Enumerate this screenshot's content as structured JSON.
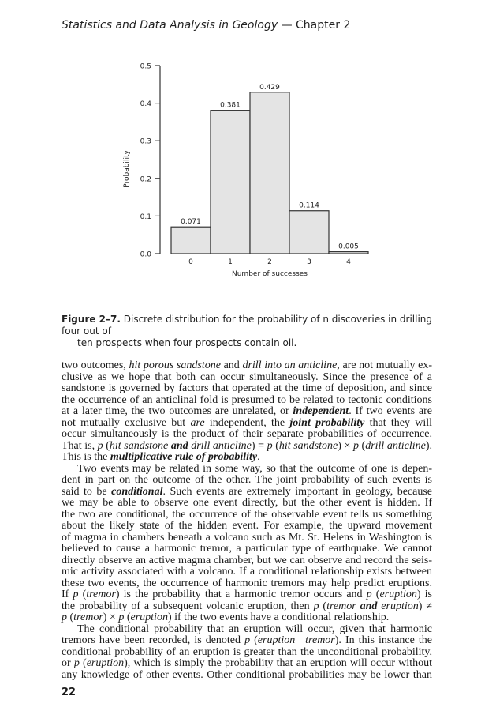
{
  "header": {
    "title": "Statistics and Data Analysis in Geology",
    "separator": " — ",
    "chapter": "Chapter 2"
  },
  "chart_data": {
    "type": "bar",
    "categories": [
      "0",
      "1",
      "2",
      "3",
      "4"
    ],
    "values": [
      0.071,
      0.381,
      0.429,
      0.114,
      0.005
    ],
    "data_labels": [
      "0.071",
      "0.381",
      "0.429",
      "0.114",
      "0.005"
    ],
    "xlabel": "Number of successes",
    "ylabel": "Probability",
    "ylim": [
      0,
      0.5
    ],
    "yticks": [
      "0.0",
      "0.1",
      "0.2",
      "0.3",
      "0.4",
      "0.5"
    ],
    "grid": false,
    "bar_fill": "#e4e4e4",
    "bar_stroke": "#333333"
  },
  "caption": {
    "label": "Figure 2–7.",
    "line1": " Discrete distribution for the probability of n discoveries in drilling four out of",
    "line2": "ten prospects when four prospects contain oil."
  },
  "body": {
    "lines": [
      {
        "segs": [
          {
            "t": "two outcomes, "
          },
          {
            "t": "hit porous sandstone",
            "s": "i"
          },
          {
            "t": " and "
          },
          {
            "t": "drill into an anticline",
            "s": "i"
          },
          {
            "t": ", are not mutually ex-"
          }
        ]
      },
      {
        "segs": [
          {
            "t": "clusive as we hope that both can occur simultaneously.  Since the presence of a"
          }
        ]
      },
      {
        "segs": [
          {
            "t": "sandstone is governed by factors that operated at the time of deposition, and since"
          }
        ]
      },
      {
        "segs": [
          {
            "t": "the occurrence of an anticlinal fold is presumed to be related to tectonic conditions"
          }
        ]
      },
      {
        "segs": [
          {
            "t": "at a later time, the two outcomes are unrelated, or "
          },
          {
            "t": "independent",
            "s": "bi"
          },
          {
            "t": ". If two events are"
          }
        ]
      },
      {
        "segs": [
          {
            "t": "not mutually exclusive but "
          },
          {
            "t": "are",
            "s": "i"
          },
          {
            "t": " independent, the "
          },
          {
            "t": "joint probability",
            "s": "bi"
          },
          {
            "t": " that they will"
          }
        ]
      },
      {
        "segs": [
          {
            "t": "occur simultaneously is the product of their separate probabilities of occurrence."
          }
        ]
      },
      {
        "segs": [
          {
            "t": "That is, "
          },
          {
            "t": "p",
            "s": "i"
          },
          {
            "t": " ("
          },
          {
            "t": "hit sandstone ",
            "s": "i"
          },
          {
            "t": "and",
            "s": "bi"
          },
          {
            "t": " drill anticline",
            "s": "i"
          },
          {
            "t": ")  =  "
          },
          {
            "t": "p",
            "s": "i"
          },
          {
            "t": " ("
          },
          {
            "t": "hit sandstone",
            "s": "i"
          },
          {
            "t": ") × "
          },
          {
            "t": "p",
            "s": "i"
          },
          {
            "t": " ("
          },
          {
            "t": "drill anticline",
            "s": "i"
          },
          {
            "t": ")."
          }
        ]
      },
      {
        "last": true,
        "segs": [
          {
            "t": "This is the "
          },
          {
            "t": "multiplicative rule of probability",
            "s": "bi"
          },
          {
            "t": "."
          }
        ]
      },
      {
        "indent": true,
        "segs": [
          {
            "t": "Two events may be related in some way, so that the outcome of one is depen-"
          }
        ]
      },
      {
        "segs": [
          {
            "t": "dent in part on the outcome of the other.  The joint probability of such events is"
          }
        ]
      },
      {
        "segs": [
          {
            "t": "said to be "
          },
          {
            "t": "conditional",
            "s": "bi"
          },
          {
            "t": ".  Such events are extremely important in geology, because"
          }
        ]
      },
      {
        "segs": [
          {
            "t": "we may be able to observe one event directly, but the other event is hidden.  If"
          }
        ]
      },
      {
        "segs": [
          {
            "t": "the two are conditional, the occurrence of the observable event tells us something"
          }
        ]
      },
      {
        "segs": [
          {
            "t": "about the likely state of the hidden event.  For example, the upward movement"
          }
        ]
      },
      {
        "segs": [
          {
            "t": "of magma in chambers beneath a volcano such as Mt. St. Helens in Washington is"
          }
        ]
      },
      {
        "segs": [
          {
            "t": "believed to cause a harmonic tremor, a particular type of earthquake.  We cannot"
          }
        ]
      },
      {
        "segs": [
          {
            "t": "directly observe an active magma chamber, but we can observe and record the seis-"
          }
        ]
      },
      {
        "segs": [
          {
            "t": "mic activity associated with a volcano. If a conditional relationship exists between"
          }
        ]
      },
      {
        "segs": [
          {
            "t": "these two events, the occurrence of harmonic tremors may help predict eruptions."
          }
        ]
      },
      {
        "segs": [
          {
            "t": "If "
          },
          {
            "t": "p",
            "s": "i"
          },
          {
            "t": " ("
          },
          {
            "t": "tremor",
            "s": "i"
          },
          {
            "t": ") is the probability that a harmonic tremor occurs and "
          },
          {
            "t": "p",
            "s": "i"
          },
          {
            "t": " ("
          },
          {
            "t": "eruption",
            "s": "i"
          },
          {
            "t": ") is"
          }
        ]
      },
      {
        "segs": [
          {
            "t": "the probability of a subsequent volcanic eruption, then "
          },
          {
            "t": "p",
            "s": "i"
          },
          {
            "t": " ("
          },
          {
            "t": "tremor ",
            "s": "i"
          },
          {
            "t": "and",
            "s": "bi"
          },
          {
            "t": " eruption",
            "s": "i"
          },
          {
            "t": ") ≠"
          }
        ]
      },
      {
        "last": true,
        "segs": [
          {
            "t": "p",
            "s": "i"
          },
          {
            "t": " ("
          },
          {
            "t": "tremor",
            "s": "i"
          },
          {
            "t": ") × "
          },
          {
            "t": "p",
            "s": "i"
          },
          {
            "t": " ("
          },
          {
            "t": "eruption",
            "s": "i"
          },
          {
            "t": ") if the two events have a conditional relationship."
          }
        ]
      },
      {
        "indent": true,
        "segs": [
          {
            "t": "The conditional probability that an eruption will occur, given that harmonic"
          }
        ]
      },
      {
        "segs": [
          {
            "t": "tremors have been recorded, is denoted "
          },
          {
            "t": "p",
            "s": "i"
          },
          {
            "t": " ("
          },
          {
            "t": "eruption",
            "s": "i"
          },
          {
            "t": " | "
          },
          {
            "t": "tremor",
            "s": "i"
          },
          {
            "t": ").  In this instance the"
          }
        ]
      },
      {
        "segs": [
          {
            "t": "conditional probability of an eruption is greater than the unconditional probability,"
          }
        ]
      },
      {
        "segs": [
          {
            "t": "or "
          },
          {
            "t": "p",
            "s": "i"
          },
          {
            "t": " ("
          },
          {
            "t": "eruption",
            "s": "i"
          },
          {
            "t": "), which is simply the probability that an eruption will occur without"
          }
        ]
      },
      {
        "segs": [
          {
            "t": "any knowledge of other events.  Other conditional probabilities may be lower than"
          }
        ]
      }
    ]
  },
  "page_number": "22"
}
